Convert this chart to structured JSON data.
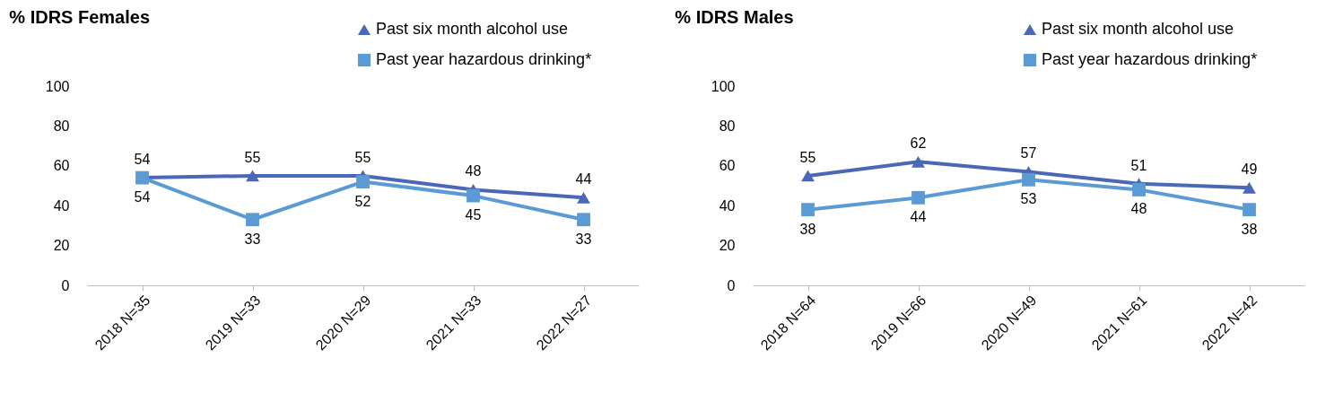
{
  "chart_data": [
    {
      "type": "line",
      "title": "% IDRS Females",
      "categories": [
        "2018 N=35",
        "2019 N=33",
        "2020 N=29",
        "2021 N=33",
        "2022 N=27"
      ],
      "series": [
        {
          "name": "Past six month alcohol use",
          "color": "#4a67b8",
          "marker": "triangle",
          "values": [
            54,
            55,
            55,
            48,
            44
          ]
        },
        {
          "name": "Past year hazardous drinking*",
          "color": "#5b9bd5",
          "marker": "square",
          "values": [
            54,
            33,
            52,
            45,
            33
          ]
        }
      ],
      "ylim": [
        0,
        100
      ],
      "yticks": [
        0,
        20,
        40,
        60,
        80,
        100
      ],
      "grid": false,
      "legend": "top right",
      "data_labels": true
    },
    {
      "type": "line",
      "title": "% IDRS Males",
      "categories": [
        "2018 N=64",
        "2019 N=66",
        "2020 N=49",
        "2021 N=61",
        "2022 N=42"
      ],
      "series": [
        {
          "name": "Past six month alcohol use",
          "color": "#4a67b8",
          "marker": "triangle",
          "values": [
            55,
            62,
            57,
            51,
            49
          ]
        },
        {
          "name": "Past year hazardous drinking*",
          "color": "#5b9bd5",
          "marker": "square",
          "values": [
            38,
            44,
            53,
            48,
            38
          ]
        }
      ],
      "ylim": [
        0,
        100
      ],
      "yticks": [
        0,
        20,
        40,
        60,
        80,
        100
      ],
      "grid": false,
      "legend": "top right",
      "data_labels": true
    }
  ]
}
